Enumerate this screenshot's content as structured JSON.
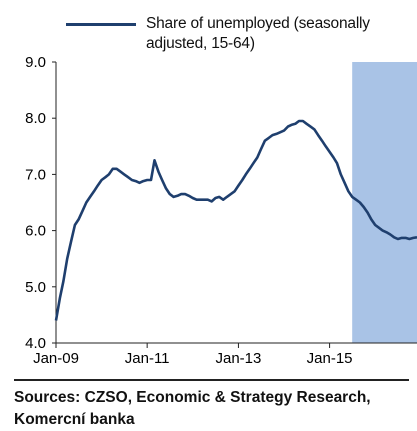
{
  "chart_data": {
    "type": "line",
    "series": [
      {
        "name": "Share of unemployed (seasonally adjusted, 15-64)",
        "color": "#1f3f6e",
        "points": [
          [
            "2009-01",
            4.4
          ],
          [
            "2009-02",
            4.8
          ],
          [
            "2009-03",
            5.1
          ],
          [
            "2009-04",
            5.5
          ],
          [
            "2009-05",
            5.8
          ],
          [
            "2009-06",
            6.1
          ],
          [
            "2009-07",
            6.2
          ],
          [
            "2009-08",
            6.35
          ],
          [
            "2009-09",
            6.5
          ],
          [
            "2009-10",
            6.6
          ],
          [
            "2009-11",
            6.7
          ],
          [
            "2009-12",
            6.8
          ],
          [
            "2010-01",
            6.9
          ],
          [
            "2010-02",
            6.95
          ],
          [
            "2010-03",
            7.0
          ],
          [
            "2010-04",
            7.1
          ],
          [
            "2010-05",
            7.1
          ],
          [
            "2010-06",
            7.05
          ],
          [
            "2010-07",
            7.0
          ],
          [
            "2010-08",
            6.95
          ],
          [
            "2010-09",
            6.9
          ],
          [
            "2010-10",
            6.88
          ],
          [
            "2010-11",
            6.85
          ],
          [
            "2010-12",
            6.88
          ],
          [
            "2011-01",
            6.9
          ],
          [
            "2011-02",
            6.9
          ],
          [
            "2011-03",
            7.25
          ],
          [
            "2011-04",
            7.05
          ],
          [
            "2011-05",
            6.9
          ],
          [
            "2011-06",
            6.75
          ],
          [
            "2011-07",
            6.65
          ],
          [
            "2011-08",
            6.6
          ],
          [
            "2011-09",
            6.62
          ],
          [
            "2011-10",
            6.65
          ],
          [
            "2011-11",
            6.65
          ],
          [
            "2011-12",
            6.62
          ],
          [
            "2012-01",
            6.58
          ],
          [
            "2012-02",
            6.55
          ],
          [
            "2012-03",
            6.55
          ],
          [
            "2012-04",
            6.55
          ],
          [
            "2012-05",
            6.55
          ],
          [
            "2012-06",
            6.52
          ],
          [
            "2012-07",
            6.58
          ],
          [
            "2012-08",
            6.6
          ],
          [
            "2012-09",
            6.55
          ],
          [
            "2012-10",
            6.6
          ],
          [
            "2012-11",
            6.65
          ],
          [
            "2012-12",
            6.7
          ],
          [
            "2013-01",
            6.8
          ],
          [
            "2013-02",
            6.9
          ],
          [
            "2013-03",
            7.0
          ],
          [
            "2013-04",
            7.1
          ],
          [
            "2013-05",
            7.2
          ],
          [
            "2013-06",
            7.3
          ],
          [
            "2013-07",
            7.45
          ],
          [
            "2013-08",
            7.6
          ],
          [
            "2013-09",
            7.65
          ],
          [
            "2013-10",
            7.7
          ],
          [
            "2013-11",
            7.72
          ],
          [
            "2013-12",
            7.75
          ],
          [
            "2014-01",
            7.78
          ],
          [
            "2014-02",
            7.85
          ],
          [
            "2014-03",
            7.88
          ],
          [
            "2014-04",
            7.9
          ],
          [
            "2014-05",
            7.95
          ],
          [
            "2014-06",
            7.95
          ],
          [
            "2014-07",
            7.9
          ],
          [
            "2014-08",
            7.85
          ],
          [
            "2014-09",
            7.8
          ],
          [
            "2014-10",
            7.7
          ],
          [
            "2014-11",
            7.6
          ],
          [
            "2014-12",
            7.5
          ],
          [
            "2015-01",
            7.4
          ],
          [
            "2015-02",
            7.3
          ],
          [
            "2015-03",
            7.2
          ],
          [
            "2015-04",
            7.0
          ],
          [
            "2015-05",
            6.85
          ],
          [
            "2015-06",
            6.7
          ],
          [
            "2015-07",
            6.6
          ],
          [
            "2015-08",
            6.55
          ],
          [
            "2015-09",
            6.5
          ],
          [
            "2015-10",
            6.42
          ],
          [
            "2015-11",
            6.32
          ],
          [
            "2015-12",
            6.2
          ],
          [
            "2016-01",
            6.1
          ],
          [
            "2016-02",
            6.05
          ],
          [
            "2016-03",
            6.0
          ],
          [
            "2016-04",
            5.97
          ],
          [
            "2016-05",
            5.93
          ],
          [
            "2016-06",
            5.88
          ],
          [
            "2016-07",
            5.85
          ],
          [
            "2016-08",
            5.87
          ],
          [
            "2016-09",
            5.87
          ],
          [
            "2016-10",
            5.85
          ],
          [
            "2016-11",
            5.87
          ],
          [
            "2016-12",
            5.88
          ]
        ]
      }
    ],
    "forecast_band": {
      "start": "2015-07",
      "end": "2016-12",
      "color": "#a9c3e6"
    },
    "x_ticks": [
      "Jan-09",
      "Jan-11",
      "Jan-13",
      "Jan-15"
    ],
    "y_ticks": [
      "9.0",
      "8.0",
      "7.0",
      "6.0",
      "5.0",
      "4.0"
    ],
    "ylim": [
      4.0,
      9.0
    ],
    "grid": false,
    "legend_position": "top"
  },
  "source": "Sources: CZSO, Economic & Strategy Research, Komercní banka"
}
